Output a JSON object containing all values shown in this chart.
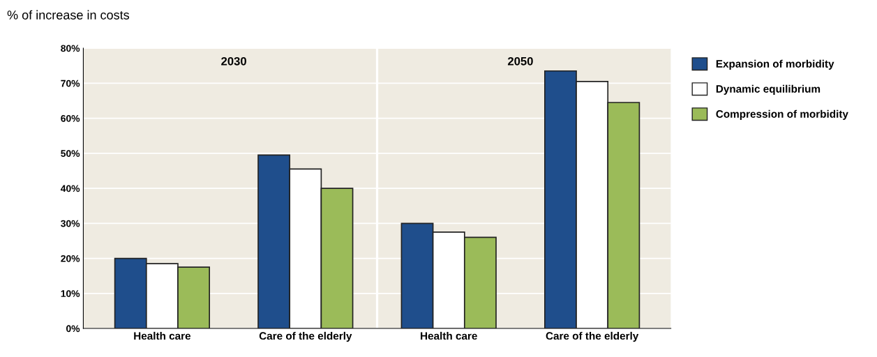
{
  "chart_data": {
    "type": "bar",
    "ylabel": "% of increase in costs",
    "categories": [
      "Health care",
      "Care of the elderly",
      "Health care",
      "Care of the elderly"
    ],
    "series": [
      {
        "name": "Expansion of morbidity",
        "color": "#1f4e8c",
        "values": [
          20,
          49.5,
          30,
          73.5
        ]
      },
      {
        "name": "Dynamic equilibrium",
        "color": "#ffffff",
        "values": [
          18.5,
          45.5,
          27.5,
          70.5
        ]
      },
      {
        "name": "Compression of morbidity",
        "color": "#9bbb59",
        "values": [
          17.5,
          40,
          26,
          64.5
        ]
      }
    ],
    "ylim": [
      0,
      80
    ],
    "yticks": [
      {
        "value": 0,
        "label": "0%"
      },
      {
        "value": 10,
        "label": "10%"
      },
      {
        "value": 20,
        "label": "20%"
      },
      {
        "value": 30,
        "label": "30%"
      },
      {
        "value": 40,
        "label": "40%"
      },
      {
        "value": 50,
        "label": "50%"
      },
      {
        "value": 60,
        "label": "60%"
      },
      {
        "value": 70,
        "label": "70%"
      },
      {
        "value": 80,
        "label": "80%"
      }
    ],
    "annotations": [
      "2030",
      "2050"
    ],
    "grid": "y",
    "legend": "right"
  }
}
